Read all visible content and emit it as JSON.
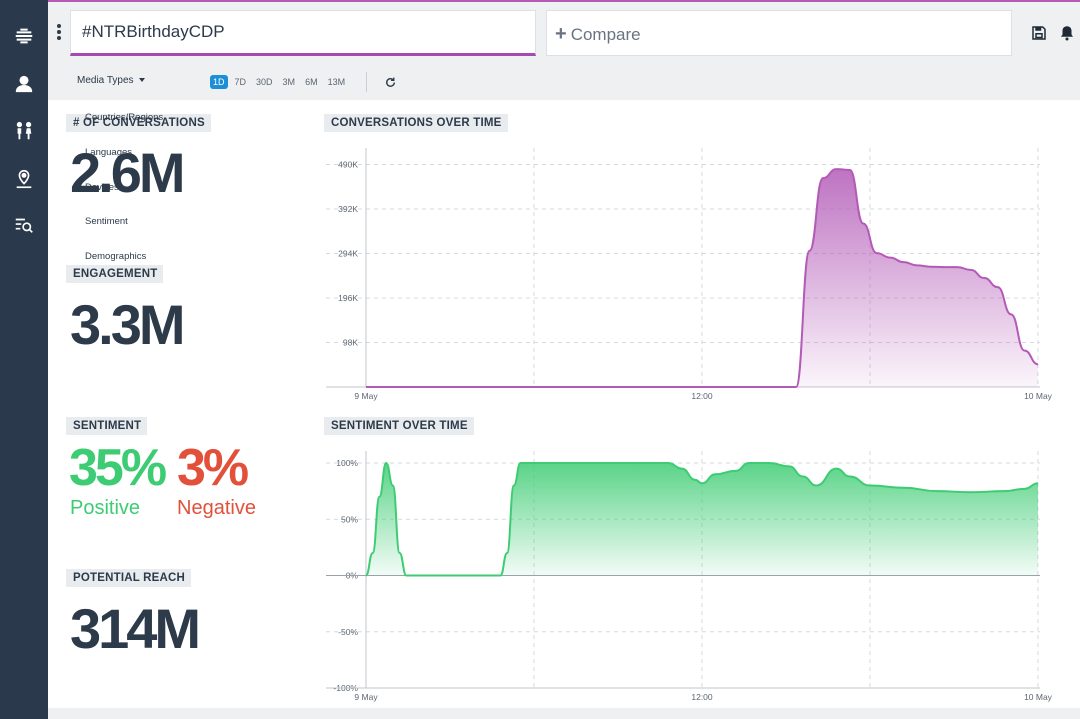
{
  "header": {
    "search_query": "#NTRBirthdayCDP",
    "compare_label": "Compare"
  },
  "toolbar": {
    "media_types_label": "Media Types",
    "ranges": [
      "1D",
      "7D",
      "30D",
      "3M",
      "6M",
      "13M"
    ],
    "active_range": "1D"
  },
  "dropdown_items": [
    "Countries/Regions",
    "Languages",
    "Devices",
    "Sentiment",
    "Demographics"
  ],
  "metrics": {
    "conversations_label": "# OF CONVERSATIONS",
    "conversations_value": "2.6M",
    "engagement_label": "ENGAGEMENT",
    "engagement_value": "3.3M",
    "sentiment_label": "SENTIMENT",
    "positive_value": "35%",
    "positive_label": "Positive",
    "negative_value": "3%",
    "negative_label": "Negative",
    "reach_label": "POTENTIAL REACH",
    "reach_value": "314M"
  },
  "colors": {
    "accent_purple": "#a44ab0",
    "positive_green": "#3dcc73",
    "negative_red": "#e2503a",
    "sidebar": "#2a3a4c",
    "active_range": "#1e8fd6"
  },
  "chart_data": [
    {
      "type": "area",
      "title": "CONVERSATIONS OVER TIME",
      "y_ticks": [
        "490K",
        "392K",
        "294K",
        "196K",
        "98K"
      ],
      "y_tick_values": [
        490000,
        392000,
        294000,
        196000,
        98000
      ],
      "x_ticks": [
        "9 May",
        "12:00",
        "10 May"
      ],
      "x_tick_positions": [
        0,
        0.5,
        1
      ],
      "ylim": [
        0,
        500000
      ],
      "grid": true,
      "color": "#b35ab7",
      "x": [
        0,
        0.1,
        0.2,
        0.3,
        0.4,
        0.5,
        0.55,
        0.6,
        0.62,
        0.64,
        0.66,
        0.68,
        0.7,
        0.72,
        0.74,
        0.76,
        0.78,
        0.8,
        0.82,
        0.84,
        0.86,
        0.88,
        0.9,
        0.92,
        0.94,
        0.96,
        0.98,
        1.0
      ],
      "values": [
        0,
        0,
        0,
        0,
        0,
        0,
        0,
        0,
        0,
        0,
        300000,
        460000,
        480000,
        478000,
        360000,
        295000,
        285000,
        275000,
        268000,
        265000,
        264000,
        264000,
        258000,
        240000,
        220000,
        160000,
        80000,
        50000
      ]
    },
    {
      "type": "area",
      "title": "SENTIMENT OVER TIME",
      "y_ticks": [
        "100%",
        "50%",
        "0%",
        "-50%",
        "-100%"
      ],
      "y_tick_values": [
        100,
        50,
        0,
        -50,
        -100
      ],
      "x_ticks": [
        "9 May",
        "12:00",
        "10 May"
      ],
      "x_tick_positions": [
        0,
        0.5,
        1
      ],
      "ylim": [
        -100,
        100
      ],
      "grid": true,
      "color": "#3dcc73",
      "x": [
        0,
        0.01,
        0.02,
        0.03,
        0.04,
        0.05,
        0.06,
        0.07,
        0.08,
        0.1,
        0.15,
        0.2,
        0.21,
        0.22,
        0.23,
        0.25,
        0.3,
        0.35,
        0.4,
        0.45,
        0.47,
        0.49,
        0.5,
        0.52,
        0.55,
        0.57,
        0.6,
        0.63,
        0.65,
        0.67,
        0.7,
        0.72,
        0.75,
        0.8,
        0.85,
        0.9,
        0.95,
        0.98,
        1.0
      ],
      "values": [
        0,
        20,
        70,
        100,
        80,
        20,
        0,
        0,
        0,
        0,
        0,
        0,
        20,
        80,
        100,
        100,
        100,
        100,
        100,
        100,
        95,
        85,
        82,
        90,
        93,
        100,
        100,
        97,
        88,
        80,
        95,
        88,
        80,
        78,
        75,
        74,
        75,
        77,
        82
      ]
    }
  ]
}
